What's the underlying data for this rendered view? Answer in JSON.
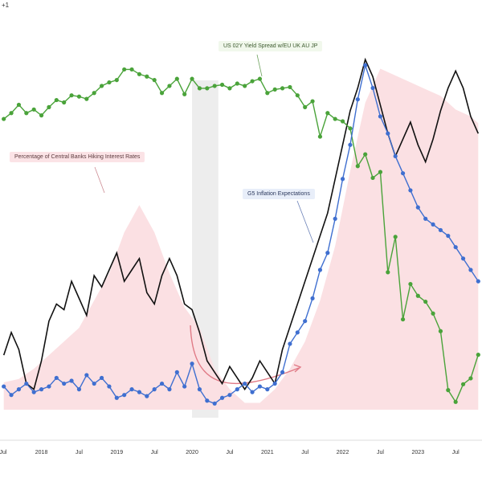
{
  "header": {
    "corner_text": "+1"
  },
  "annotations": {
    "yield_spread": "US 02Y Yield Spread w/EU UK AU JP",
    "hiking": "Percentage of Central Banks Hiking Interest Rates",
    "inflation": "G5 Inflation Expectations"
  },
  "colors": {
    "green": "#4aa33a",
    "blue": "#3f6fd0",
    "black": "#111111",
    "pink_fill": "#fbe0e3",
    "shade": "#e6e6e6",
    "arrow": "#e07a86"
  },
  "chart_data": {
    "type": "line",
    "x_ticks": [
      "Jul",
      "2018",
      "Jul",
      "2019",
      "Jul",
      "2020",
      "Jul",
      "2021",
      "Jul",
      "2022",
      "Jul",
      "2023",
      "Jul"
    ],
    "x_range": [
      "2017-07",
      "2023-10"
    ],
    "y_axis": "not printed",
    "grid": false,
    "series": [
      {
        "name": "US 02Y Yield Spread w/EU UK AU JP",
        "style": "line-with-markers",
        "color": "#4aa33a",
        "x": [
          2017.5,
          2017.6,
          2017.7,
          2017.8,
          2017.9,
          2018.0,
          2018.1,
          2018.2,
          2018.3,
          2018.4,
          2018.5,
          2018.6,
          2018.7,
          2018.8,
          2018.9,
          2019.0,
          2019.1,
          2019.2,
          2019.3,
          2019.4,
          2019.5,
          2019.6,
          2019.7,
          2019.8,
          2019.9,
          2020.0,
          2020.1,
          2020.2,
          2020.3,
          2020.4,
          2020.5,
          2020.6,
          2020.7,
          2020.8,
          2020.9,
          2021.0,
          2021.1,
          2021.2,
          2021.3,
          2021.4,
          2021.5,
          2021.6,
          2021.7,
          2021.8,
          2021.9,
          2022.0,
          2022.1,
          2022.2,
          2022.3,
          2022.4,
          2022.5,
          2022.6,
          2022.7,
          2022.8,
          2022.9,
          2023.0,
          2023.1,
          2023.2,
          2023.3,
          2023.4,
          2023.5,
          2023.6,
          2023.7,
          2023.8
        ],
        "y": [
          0.0,
          0.05,
          0.12,
          0.05,
          0.08,
          0.03,
          0.1,
          0.16,
          0.14,
          0.2,
          0.19,
          0.17,
          0.22,
          0.28,
          0.31,
          0.33,
          0.42,
          0.42,
          0.38,
          0.36,
          0.33,
          0.22,
          0.28,
          0.34,
          0.21,
          0.34,
          0.26,
          0.26,
          0.28,
          0.29,
          0.26,
          0.3,
          0.28,
          0.32,
          0.34,
          0.22,
          0.25,
          0.26,
          0.27,
          0.2,
          0.1,
          0.15,
          -0.15,
          0.05,
          0.0,
          -0.02,
          -0.08,
          -0.4,
          -0.3,
          -0.5,
          -0.45,
          -1.3,
          -1.0,
          -1.7,
          -1.4,
          -1.5,
          -1.55,
          -1.65,
          -1.8,
          -2.3,
          -2.4,
          -2.25,
          -2.2,
          -2.0
        ]
      },
      {
        "name": "G5 Inflation Expectations",
        "style": "line-with-markers",
        "color": "#3f6fd0",
        "x": [
          2017.5,
          2017.6,
          2017.7,
          2017.8,
          2017.9,
          2018.0,
          2018.1,
          2018.2,
          2018.3,
          2018.4,
          2018.5,
          2018.6,
          2018.7,
          2018.8,
          2018.9,
          2019.0,
          2019.1,
          2019.2,
          2019.3,
          2019.4,
          2019.5,
          2019.6,
          2019.7,
          2019.8,
          2019.9,
          2020.0,
          2020.1,
          2020.2,
          2020.3,
          2020.4,
          2020.5,
          2020.6,
          2020.7,
          2020.8,
          2020.9,
          2021.0,
          2021.1,
          2021.2,
          2021.3,
          2021.4,
          2021.5,
          2021.6,
          2021.7,
          2021.8,
          2021.9,
          2022.0,
          2022.1,
          2022.2,
          2022.3,
          2022.4,
          2022.5,
          2022.6,
          2022.7,
          2022.8,
          2022.9,
          2023.0,
          2023.1,
          2023.2,
          2023.3,
          2023.4,
          2023.5,
          2023.6,
          2023.7,
          2023.8
        ],
        "y": [
          1.55,
          1.4,
          1.5,
          1.6,
          1.45,
          1.5,
          1.55,
          1.7,
          1.6,
          1.65,
          1.5,
          1.75,
          1.6,
          1.7,
          1.55,
          1.35,
          1.4,
          1.5,
          1.45,
          1.38,
          1.5,
          1.6,
          1.5,
          1.8,
          1.55,
          1.95,
          1.5,
          1.3,
          1.25,
          1.35,
          1.4,
          1.5,
          1.6,
          1.45,
          1.55,
          1.5,
          1.6,
          1.8,
          2.3,
          2.5,
          2.7,
          3.1,
          3.6,
          3.9,
          4.5,
          5.2,
          5.8,
          6.6,
          7.2,
          6.8,
          6.3,
          6.0,
          5.6,
          5.3,
          5.0,
          4.7,
          4.5,
          4.4,
          4.3,
          4.2,
          4.0,
          3.8,
          3.6,
          3.4
        ],
        "note": "values in relative units; axis not printed"
      },
      {
        "name": "black line (unlabeled)",
        "style": "line",
        "color": "#111111",
        "x": [
          2017.5,
          2017.6,
          2017.7,
          2017.8,
          2017.9,
          2018.0,
          2018.1,
          2018.2,
          2018.3,
          2018.4,
          2018.5,
          2018.6,
          2018.7,
          2018.8,
          2018.9,
          2019.0,
          2019.1,
          2019.2,
          2019.3,
          2019.4,
          2019.5,
          2019.6,
          2019.7,
          2019.8,
          2019.9,
          2020.0,
          2020.1,
          2020.2,
          2020.3,
          2020.4,
          2020.5,
          2020.6,
          2020.7,
          2020.8,
          2020.9,
          2021.0,
          2021.1,
          2021.2,
          2021.3,
          2021.4,
          2021.5,
          2021.6,
          2021.7,
          2021.8,
          2021.9,
          2022.0,
          2022.1,
          2022.2,
          2022.3,
          2022.4,
          2022.5,
          2022.6,
          2022.7,
          2022.8,
          2022.9,
          2023.0,
          2023.1,
          2023.2,
          2023.3,
          2023.4,
          2023.5,
          2023.6,
          2023.7,
          2023.8
        ],
        "y": [
          2.1,
          2.5,
          2.2,
          1.6,
          1.5,
          2.0,
          2.7,
          3.0,
          2.9,
          3.4,
          3.1,
          2.8,
          3.5,
          3.3,
          3.6,
          3.9,
          3.4,
          3.6,
          3.8,
          3.2,
          3.0,
          3.5,
          3.8,
          3.5,
          3.0,
          2.9,
          2.5,
          2.0,
          1.8,
          1.6,
          1.9,
          1.7,
          1.5,
          1.7,
          2.0,
          1.8,
          1.6,
          2.2,
          2.6,
          3.0,
          3.4,
          3.8,
          4.2,
          4.6,
          5.2,
          5.8,
          6.4,
          6.8,
          7.3,
          7.0,
          6.5,
          6.0,
          5.6,
          5.9,
          6.2,
          5.8,
          5.5,
          5.9,
          6.4,
          6.8,
          7.1,
          6.8,
          6.3,
          6.0
        ]
      },
      {
        "name": "Percentage of Central Banks Hiking Interest Rates",
        "style": "filled-area",
        "color": "#fbe0e3",
        "x": [
          2017.5,
          2017.7,
          2017.9,
          2018.1,
          2018.3,
          2018.5,
          2018.7,
          2018.9,
          2019.1,
          2019.3,
          2019.5,
          2019.7,
          2019.9,
          2020.1,
          2020.3,
          2020.5,
          2020.7,
          2020.9,
          2021.1,
          2021.3,
          2021.5,
          2021.7,
          2021.9,
          2022.1,
          2022.3,
          2022.5,
          2022.7,
          2022.9,
          2023.1,
          2023.3,
          2023.5,
          2023.7,
          2023.8
        ],
        "y": [
          0.4,
          0.45,
          0.6,
          0.8,
          1.0,
          1.2,
          1.6,
          2.0,
          2.6,
          3.0,
          2.6,
          2.0,
          1.5,
          1.2,
          0.6,
          0.3,
          0.1,
          0.1,
          0.3,
          0.6,
          1.0,
          1.6,
          2.4,
          3.5,
          4.5,
          5.0,
          4.9,
          4.8,
          4.7,
          4.6,
          4.4,
          4.3,
          4.2
        ]
      }
    ]
  }
}
